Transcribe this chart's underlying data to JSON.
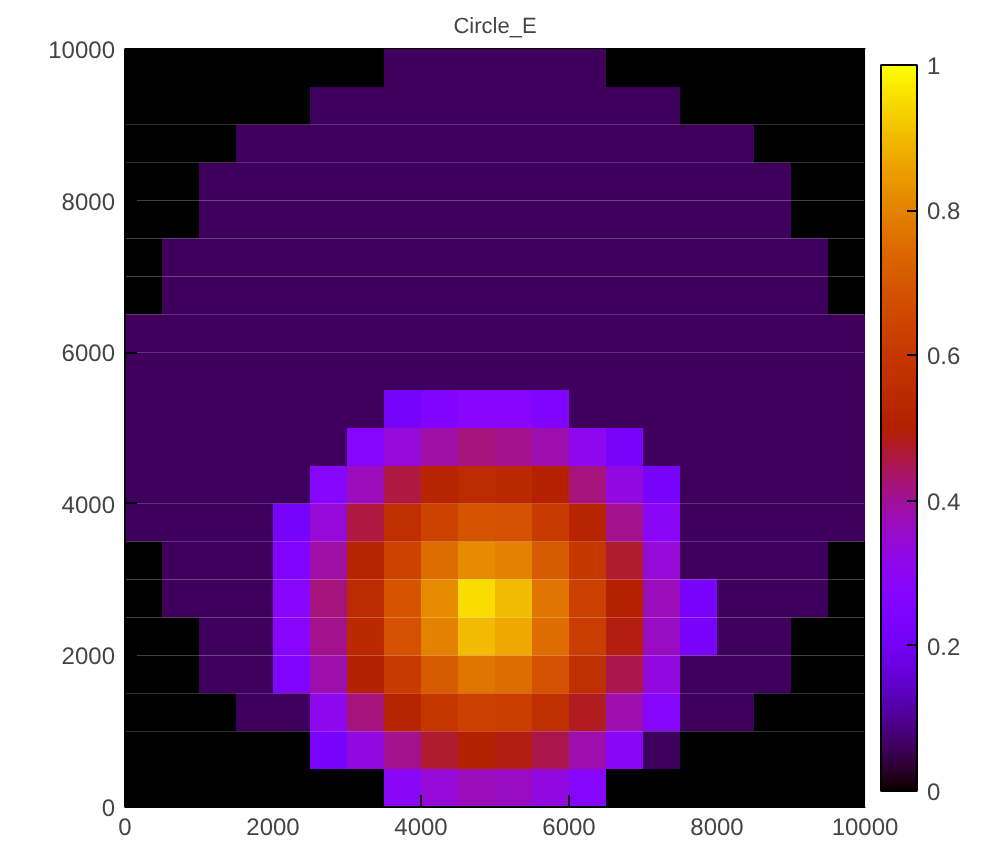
{
  "chart_data": {
    "type": "heatmap",
    "title": "Circle_E",
    "xlim": [
      0,
      10000
    ],
    "ylim": [
      0,
      10000
    ],
    "xticks": [
      0,
      2000,
      4000,
      6000,
      8000,
      10000
    ],
    "yticks": [
      0,
      2000,
      4000,
      6000,
      8000,
      10000
    ],
    "clim": [
      0,
      1
    ],
    "cticks": [
      0,
      0.2,
      0.4,
      0.6,
      0.8,
      1
    ],
    "cells": [
      [
        0,
        0,
        0,
        0,
        0,
        0,
        0,
        0.06,
        0.06,
        0.06,
        0.06,
        0.06,
        0.06,
        0,
        0,
        0,
        0,
        0,
        0,
        0
      ],
      [
        0,
        0,
        0,
        0,
        0,
        0.06,
        0.06,
        0.06,
        0.06,
        0.06,
        0.06,
        0.06,
        0.06,
        0.06,
        0.06,
        0,
        0,
        0,
        0,
        0
      ],
      [
        0,
        0,
        0,
        0.06,
        0.06,
        0.06,
        0.06,
        0.06,
        0.06,
        0.06,
        0.06,
        0.06,
        0.06,
        0.06,
        0.06,
        0.06,
        0.06,
        0,
        0,
        0
      ],
      [
        0,
        0,
        0.06,
        0.06,
        0.06,
        0.06,
        0.06,
        0.06,
        0.06,
        0.06,
        0.06,
        0.06,
        0.06,
        0.06,
        0.06,
        0.06,
        0.06,
        0.06,
        0,
        0
      ],
      [
        0,
        0,
        0.06,
        0.06,
        0.06,
        0.06,
        0.06,
        0.06,
        0.06,
        0.06,
        0.06,
        0.06,
        0.06,
        0.06,
        0.06,
        0.06,
        0.06,
        0.06,
        0,
        0
      ],
      [
        0,
        0.06,
        0.06,
        0.06,
        0.06,
        0.06,
        0.06,
        0.06,
        0.06,
        0.06,
        0.06,
        0.06,
        0.06,
        0.06,
        0.06,
        0.06,
        0.06,
        0.06,
        0.06,
        0
      ],
      [
        0,
        0.06,
        0.06,
        0.06,
        0.06,
        0.06,
        0.06,
        0.06,
        0.06,
        0.06,
        0.06,
        0.06,
        0.06,
        0.06,
        0.06,
        0.06,
        0.06,
        0.06,
        0.06,
        0
      ],
      [
        0.06,
        0.06,
        0.06,
        0.06,
        0.06,
        0.06,
        0.06,
        0.06,
        0.06,
        0.06,
        0.06,
        0.06,
        0.06,
        0.06,
        0.06,
        0.06,
        0.06,
        0.06,
        0.06,
        0.06
      ],
      [
        0.06,
        0.06,
        0.06,
        0.06,
        0.06,
        0.06,
        0.06,
        0.06,
        0.06,
        0.06,
        0.06,
        0.06,
        0.06,
        0.06,
        0.06,
        0.06,
        0.06,
        0.06,
        0.06,
        0.06
      ],
      [
        0.06,
        0.06,
        0.06,
        0.06,
        0.06,
        0.06,
        0.06,
        0.22,
        0.26,
        0.28,
        0.28,
        0.25,
        0.06,
        0.06,
        0.06,
        0.06,
        0.06,
        0.06,
        0.06,
        0.06
      ],
      [
        0.06,
        0.06,
        0.06,
        0.06,
        0.06,
        0.06,
        0.27,
        0.34,
        0.39,
        0.42,
        0.41,
        0.38,
        0.31,
        0.23,
        0.06,
        0.06,
        0.06,
        0.06,
        0.06,
        0.06
      ],
      [
        0.06,
        0.06,
        0.06,
        0.06,
        0.06,
        0.27,
        0.37,
        0.46,
        0.52,
        0.55,
        0.54,
        0.5,
        0.42,
        0.33,
        0.23,
        0.06,
        0.06,
        0.06,
        0.06,
        0.06
      ],
      [
        0.06,
        0.06,
        0.06,
        0.06,
        0.22,
        0.34,
        0.46,
        0.56,
        0.64,
        0.69,
        0.68,
        0.61,
        0.52,
        0.41,
        0.29,
        0.06,
        0.06,
        0.06,
        0.06,
        0.06
      ],
      [
        0,
        0.06,
        0.06,
        0.06,
        0.26,
        0.39,
        0.52,
        0.64,
        0.75,
        0.82,
        0.8,
        0.71,
        0.6,
        0.47,
        0.34,
        0.06,
        0.06,
        0.06,
        0.06,
        0
      ],
      [
        0,
        0.06,
        0.06,
        0.06,
        0.28,
        0.42,
        0.55,
        0.69,
        0.82,
        0.95,
        0.9,
        0.77,
        0.63,
        0.5,
        0.37,
        0.23,
        0.06,
        0.06,
        0.06,
        0
      ],
      [
        0,
        0,
        0.06,
        0.06,
        0.28,
        0.41,
        0.54,
        0.68,
        0.8,
        0.9,
        0.87,
        0.75,
        0.62,
        0.49,
        0.36,
        0.23,
        0.06,
        0.06,
        0,
        0
      ],
      [
        0,
        0,
        0.06,
        0.06,
        0.25,
        0.38,
        0.5,
        0.61,
        0.71,
        0.77,
        0.75,
        0.68,
        0.57,
        0.45,
        0.33,
        0.06,
        0.06,
        0.06,
        0,
        0
      ],
      [
        0,
        0,
        0,
        0.06,
        0.06,
        0.31,
        0.42,
        0.52,
        0.6,
        0.63,
        0.62,
        0.57,
        0.48,
        0.38,
        0.27,
        0.06,
        0.06,
        0,
        0,
        0
      ],
      [
        0,
        0,
        0,
        0,
        0,
        0.23,
        0.33,
        0.41,
        0.47,
        0.5,
        0.49,
        0.45,
        0.38,
        0.29,
        0.06,
        0,
        0,
        0,
        0,
        0
      ],
      [
        0,
        0,
        0,
        0,
        0,
        0,
        0,
        0.29,
        0.34,
        0.37,
        0.36,
        0.33,
        0.27,
        0,
        0,
        0,
        0,
        0,
        0,
        0
      ]
    ]
  }
}
